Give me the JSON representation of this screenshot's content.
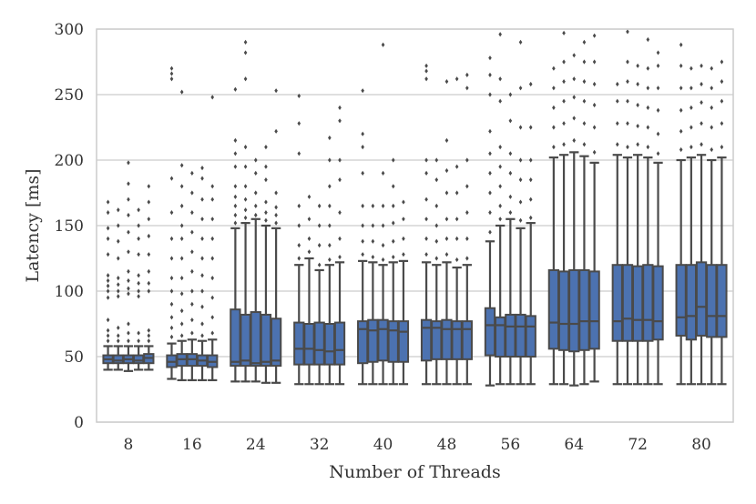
{
  "chart_data": {
    "type": "box",
    "xlabel": "Number of Threads",
    "ylabel": "Latency [ms]",
    "ylim": [
      0,
      300
    ],
    "y_ticks": [
      0,
      50,
      100,
      150,
      200,
      250,
      300
    ],
    "categories": [
      "8",
      "16",
      "24",
      "32",
      "40",
      "48",
      "56",
      "64",
      "72",
      "80"
    ],
    "boxes_per_category": 5,
    "grid": "horizontal",
    "box_color": "#4c72b0",
    "line_color": "#4a4a4a",
    "boxes": [
      [
        {
          "whislo": 40,
          "q1": 45,
          "med": 48,
          "q3": 51,
          "whishi": 58,
          "fliers": [
            62,
            66,
            70,
            78,
            95,
            100,
            104,
            108,
            112,
            128,
            140,
            148,
            160,
            168
          ]
        },
        {
          "whislo": 40,
          "q1": 45,
          "med": 47,
          "q3": 51,
          "whishi": 58,
          "fliers": [
            62,
            66,
            72,
            96,
            100,
            105,
            110,
            125,
            138,
            150,
            162
          ]
        },
        {
          "whislo": 39,
          "q1": 45,
          "med": 48,
          "q3": 51,
          "whishi": 58,
          "fliers": [
            62,
            68,
            75,
            98,
            102,
            108,
            115,
            130,
            145,
            158,
            170,
            182,
            198
          ]
        },
        {
          "whislo": 40,
          "q1": 45,
          "med": 47,
          "q3": 51,
          "whishi": 58,
          "fliers": [
            62,
            68,
            96,
            100,
            106,
            112,
            128,
            140,
            150,
            162
          ]
        },
        {
          "whislo": 40,
          "q1": 45,
          "med": 49,
          "q3": 52,
          "whishi": 58,
          "fliers": [
            62,
            66,
            70,
            100,
            106,
            115,
            128,
            142,
            155,
            168,
            180
          ]
        }
      ],
      [
        {
          "whislo": 33,
          "q1": 42,
          "med": 46,
          "q3": 51,
          "whishi": 60,
          "fliers": [
            65,
            72,
            80,
            90,
            100,
            110,
            125,
            140,
            160,
            186,
            262,
            266,
            270
          ]
        },
        {
          "whislo": 32,
          "q1": 43,
          "med": 48,
          "q3": 52,
          "whishi": 62,
          "fliers": [
            66,
            75,
            85,
            98,
            110,
            125,
            140,
            150,
            165,
            180,
            196,
            252
          ]
        },
        {
          "whislo": 32,
          "q1": 43,
          "med": 48,
          "q3": 52,
          "whishi": 63,
          "fliers": [
            68,
            78,
            90,
            100,
            115,
            130,
            145,
            160,
            175,
            190
          ]
        },
        {
          "whislo": 32,
          "q1": 43,
          "med": 47,
          "q3": 51,
          "whishi": 62,
          "fliers": [
            66,
            75,
            88,
            100,
            112,
            125,
            140,
            155,
            170,
            186,
            194
          ]
        },
        {
          "whislo": 32,
          "q1": 42,
          "med": 46,
          "q3": 51,
          "whishi": 63,
          "fliers": [
            68,
            80,
            95,
            110,
            125,
            140,
            155,
            170,
            180,
            248
          ]
        }
      ],
      [
        {
          "whislo": 31,
          "q1": 43,
          "med": 46,
          "q3": 86,
          "whishi": 148,
          "fliers": [
            152,
            158,
            165,
            172,
            180,
            195,
            205,
            215,
            254
          ]
        },
        {
          "whislo": 31,
          "q1": 43,
          "med": 47,
          "q3": 82,
          "whishi": 152,
          "fliers": [
            156,
            162,
            170,
            180,
            195,
            210,
            262,
            282,
            290
          ]
        },
        {
          "whislo": 31,
          "q1": 43,
          "med": 45,
          "q3": 84,
          "whishi": 155,
          "fliers": [
            158,
            165,
            175,
            190,
            200
          ]
        },
        {
          "whislo": 30,
          "q1": 43,
          "med": 46,
          "q3": 82,
          "whishi": 150,
          "fliers": [
            154,
            160,
            168,
            185,
            195,
            210
          ]
        },
        {
          "whislo": 30,
          "q1": 43,
          "med": 47,
          "q3": 79,
          "whishi": 148,
          "fliers": [
            152,
            158,
            164,
            175,
            222,
            253
          ]
        }
      ],
      [
        {
          "whislo": 29,
          "q1": 44,
          "med": 56,
          "q3": 76,
          "whishi": 120,
          "fliers": [
            125,
            135,
            150,
            165,
            205,
            228,
            249
          ]
        },
        {
          "whislo": 29,
          "q1": 44,
          "med": 56,
          "q3": 75,
          "whishi": 125,
          "fliers": [
            130,
            140,
            155,
            172
          ]
        },
        {
          "whislo": 29,
          "q1": 44,
          "med": 55,
          "q3": 76,
          "whishi": 116,
          "fliers": [
            120,
            135,
            150,
            165
          ]
        },
        {
          "whislo": 29,
          "q1": 44,
          "med": 54,
          "q3": 75,
          "whishi": 120,
          "fliers": [
            124,
            135,
            150,
            165,
            180,
            200,
            217
          ]
        },
        {
          "whislo": 29,
          "q1": 44,
          "med": 55,
          "q3": 76,
          "whishi": 122,
          "fliers": [
            126,
            140,
            160,
            185,
            200,
            230,
            240
          ]
        }
      ],
      [
        {
          "whislo": 29,
          "q1": 45,
          "med": 71,
          "q3": 77,
          "whishi": 123,
          "fliers": [
            128,
            138,
            150,
            165,
            190,
            210,
            220,
            253
          ]
        },
        {
          "whislo": 29,
          "q1": 46,
          "med": 70,
          "q3": 78,
          "whishi": 122,
          "fliers": [
            126,
            138,
            150,
            165
          ]
        },
        {
          "whislo": 29,
          "q1": 47,
          "med": 71,
          "q3": 78,
          "whishi": 120,
          "fliers": [
            124,
            135,
            150,
            165,
            190,
            288
          ]
        },
        {
          "whislo": 29,
          "q1": 46,
          "med": 70,
          "q3": 77,
          "whishi": 122,
          "fliers": [
            126,
            138,
            152,
            165,
            180,
            200
          ]
        },
        {
          "whislo": 29,
          "q1": 46,
          "med": 69,
          "q3": 77,
          "whishi": 123,
          "fliers": [
            128,
            140,
            155,
            168
          ]
        }
      ],
      [
        {
          "whislo": 29,
          "q1": 47,
          "med": 72,
          "q3": 78,
          "whishi": 122,
          "fliers": [
            128,
            140,
            155,
            170,
            190,
            200,
            262,
            268,
            272
          ]
        },
        {
          "whislo": 29,
          "q1": 48,
          "med": 72,
          "q3": 77,
          "whishi": 120,
          "fliers": [
            125,
            138,
            150,
            165,
            185,
            200
          ]
        },
        {
          "whislo": 29,
          "q1": 48,
          "med": 71,
          "q3": 78,
          "whishi": 122,
          "fliers": [
            128,
            140,
            155,
            175,
            192,
            215,
            260
          ]
        },
        {
          "whislo": 29,
          "q1": 48,
          "med": 71,
          "q3": 77,
          "whishi": 118,
          "fliers": [
            124,
            140,
            155,
            175,
            195,
            262
          ]
        },
        {
          "whislo": 29,
          "q1": 48,
          "med": 71,
          "q3": 77,
          "whishi": 120,
          "fliers": [
            125,
            140,
            160,
            180,
            200,
            255,
            265
          ]
        }
      ],
      [
        {
          "whislo": 28,
          "q1": 51,
          "med": 74,
          "q3": 87,
          "whishi": 138,
          "fliers": [
            145,
            160,
            175,
            190,
            205,
            222,
            250,
            265,
            278
          ]
        },
        {
          "whislo": 29,
          "q1": 50,
          "med": 74,
          "q3": 80,
          "whishi": 150,
          "fliers": [
            155,
            165,
            180,
            195,
            210,
            245,
            262,
            296
          ]
        },
        {
          "whislo": 29,
          "q1": 50,
          "med": 73,
          "q3": 82,
          "whishi": 155,
          "fliers": [
            160,
            172,
            190,
            205,
            230,
            250
          ]
        },
        {
          "whislo": 29,
          "q1": 50,
          "med": 73,
          "q3": 82,
          "whishi": 148,
          "fliers": [
            154,
            168,
            185,
            200,
            225,
            255,
            290
          ]
        },
        {
          "whislo": 29,
          "q1": 50,
          "med": 73,
          "q3": 81,
          "whishi": 152,
          "fliers": [
            156,
            170,
            185,
            200,
            225,
            258
          ]
        }
      ],
      [
        {
          "whislo": 29,
          "q1": 56,
          "med": 76,
          "q3": 116,
          "whishi": 202,
          "fliers": [
            210,
            225,
            240,
            255,
            270
          ]
        },
        {
          "whislo": 29,
          "q1": 55,
          "med": 75,
          "q3": 115,
          "whishi": 204,
          "fliers": [
            212,
            228,
            245,
            260,
            275,
            297
          ]
        },
        {
          "whislo": 28,
          "q1": 54,
          "med": 75,
          "q3": 116,
          "whishi": 206,
          "fliers": [
            215,
            232,
            248,
            262,
            280
          ]
        },
        {
          "whislo": 29,
          "q1": 55,
          "med": 77,
          "q3": 116,
          "whishi": 203,
          "fliers": [
            212,
            228,
            245,
            260,
            275,
            290
          ]
        },
        {
          "whislo": 31,
          "q1": 56,
          "med": 77,
          "q3": 115,
          "whishi": 198,
          "fliers": [
            206,
            225,
            242,
            258,
            275,
            295
          ]
        }
      ],
      [
        {
          "whislo": 29,
          "q1": 62,
          "med": 77,
          "q3": 120,
          "whishi": 204,
          "fliers": [
            212,
            228,
            245,
            258
          ]
        },
        {
          "whislo": 29,
          "q1": 62,
          "med": 79,
          "q3": 120,
          "whishi": 202,
          "fliers": [
            210,
            228,
            245,
            260,
            275,
            298
          ]
        },
        {
          "whislo": 29,
          "q1": 62,
          "med": 78,
          "q3": 119,
          "whishi": 204,
          "fliers": [
            212,
            226,
            242,
            258,
            272
          ]
        },
        {
          "whislo": 29,
          "q1": 62,
          "med": 78,
          "q3": 120,
          "whishi": 202,
          "fliers": [
            210,
            225,
            240,
            255,
            270,
            292
          ]
        },
        {
          "whislo": 29,
          "q1": 63,
          "med": 77,
          "q3": 119,
          "whishi": 198,
          "fliers": [
            205,
            220,
            238,
            255,
            272,
            282
          ]
        }
      ],
      [
        {
          "whislo": 29,
          "q1": 66,
          "med": 80,
          "q3": 120,
          "whishi": 200,
          "fliers": [
            208,
            222,
            238,
            255,
            272,
            288
          ]
        },
        {
          "whislo": 29,
          "q1": 63,
          "med": 81,
          "q3": 120,
          "whishi": 202,
          "fliers": [
            210,
            225,
            240,
            255,
            270
          ]
        },
        {
          "whislo": 29,
          "q1": 66,
          "med": 88,
          "q3": 122,
          "whishi": 204,
          "fliers": [
            212,
            228,
            244,
            258,
            272
          ]
        },
        {
          "whislo": 29,
          "q1": 65,
          "med": 81,
          "q3": 120,
          "whishi": 200,
          "fliers": [
            208,
            225,
            240,
            255,
            270
          ]
        },
        {
          "whislo": 29,
          "q1": 65,
          "med": 81,
          "q3": 120,
          "whishi": 202,
          "fliers": [
            210,
            228,
            245,
            260,
            275
          ]
        }
      ]
    ]
  }
}
